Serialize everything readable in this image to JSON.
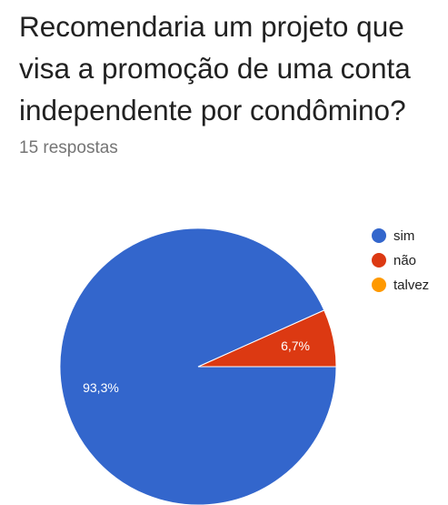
{
  "question": {
    "lines": [
      "Recomendaria um projeto que",
      "visa a promoção de uma conta",
      "independente por condômino?"
    ]
  },
  "responses_label": "15 respostas",
  "chart_data": {
    "type": "pie",
    "categories": [
      "sim",
      "não",
      "talvez"
    ],
    "values": [
      93.3,
      6.7,
      0
    ],
    "labels": [
      "93,3%",
      "6,7%",
      ""
    ],
    "colors": [
      "#3366cc",
      "#dc3912",
      "#ff9900"
    ],
    "legend": "right"
  }
}
